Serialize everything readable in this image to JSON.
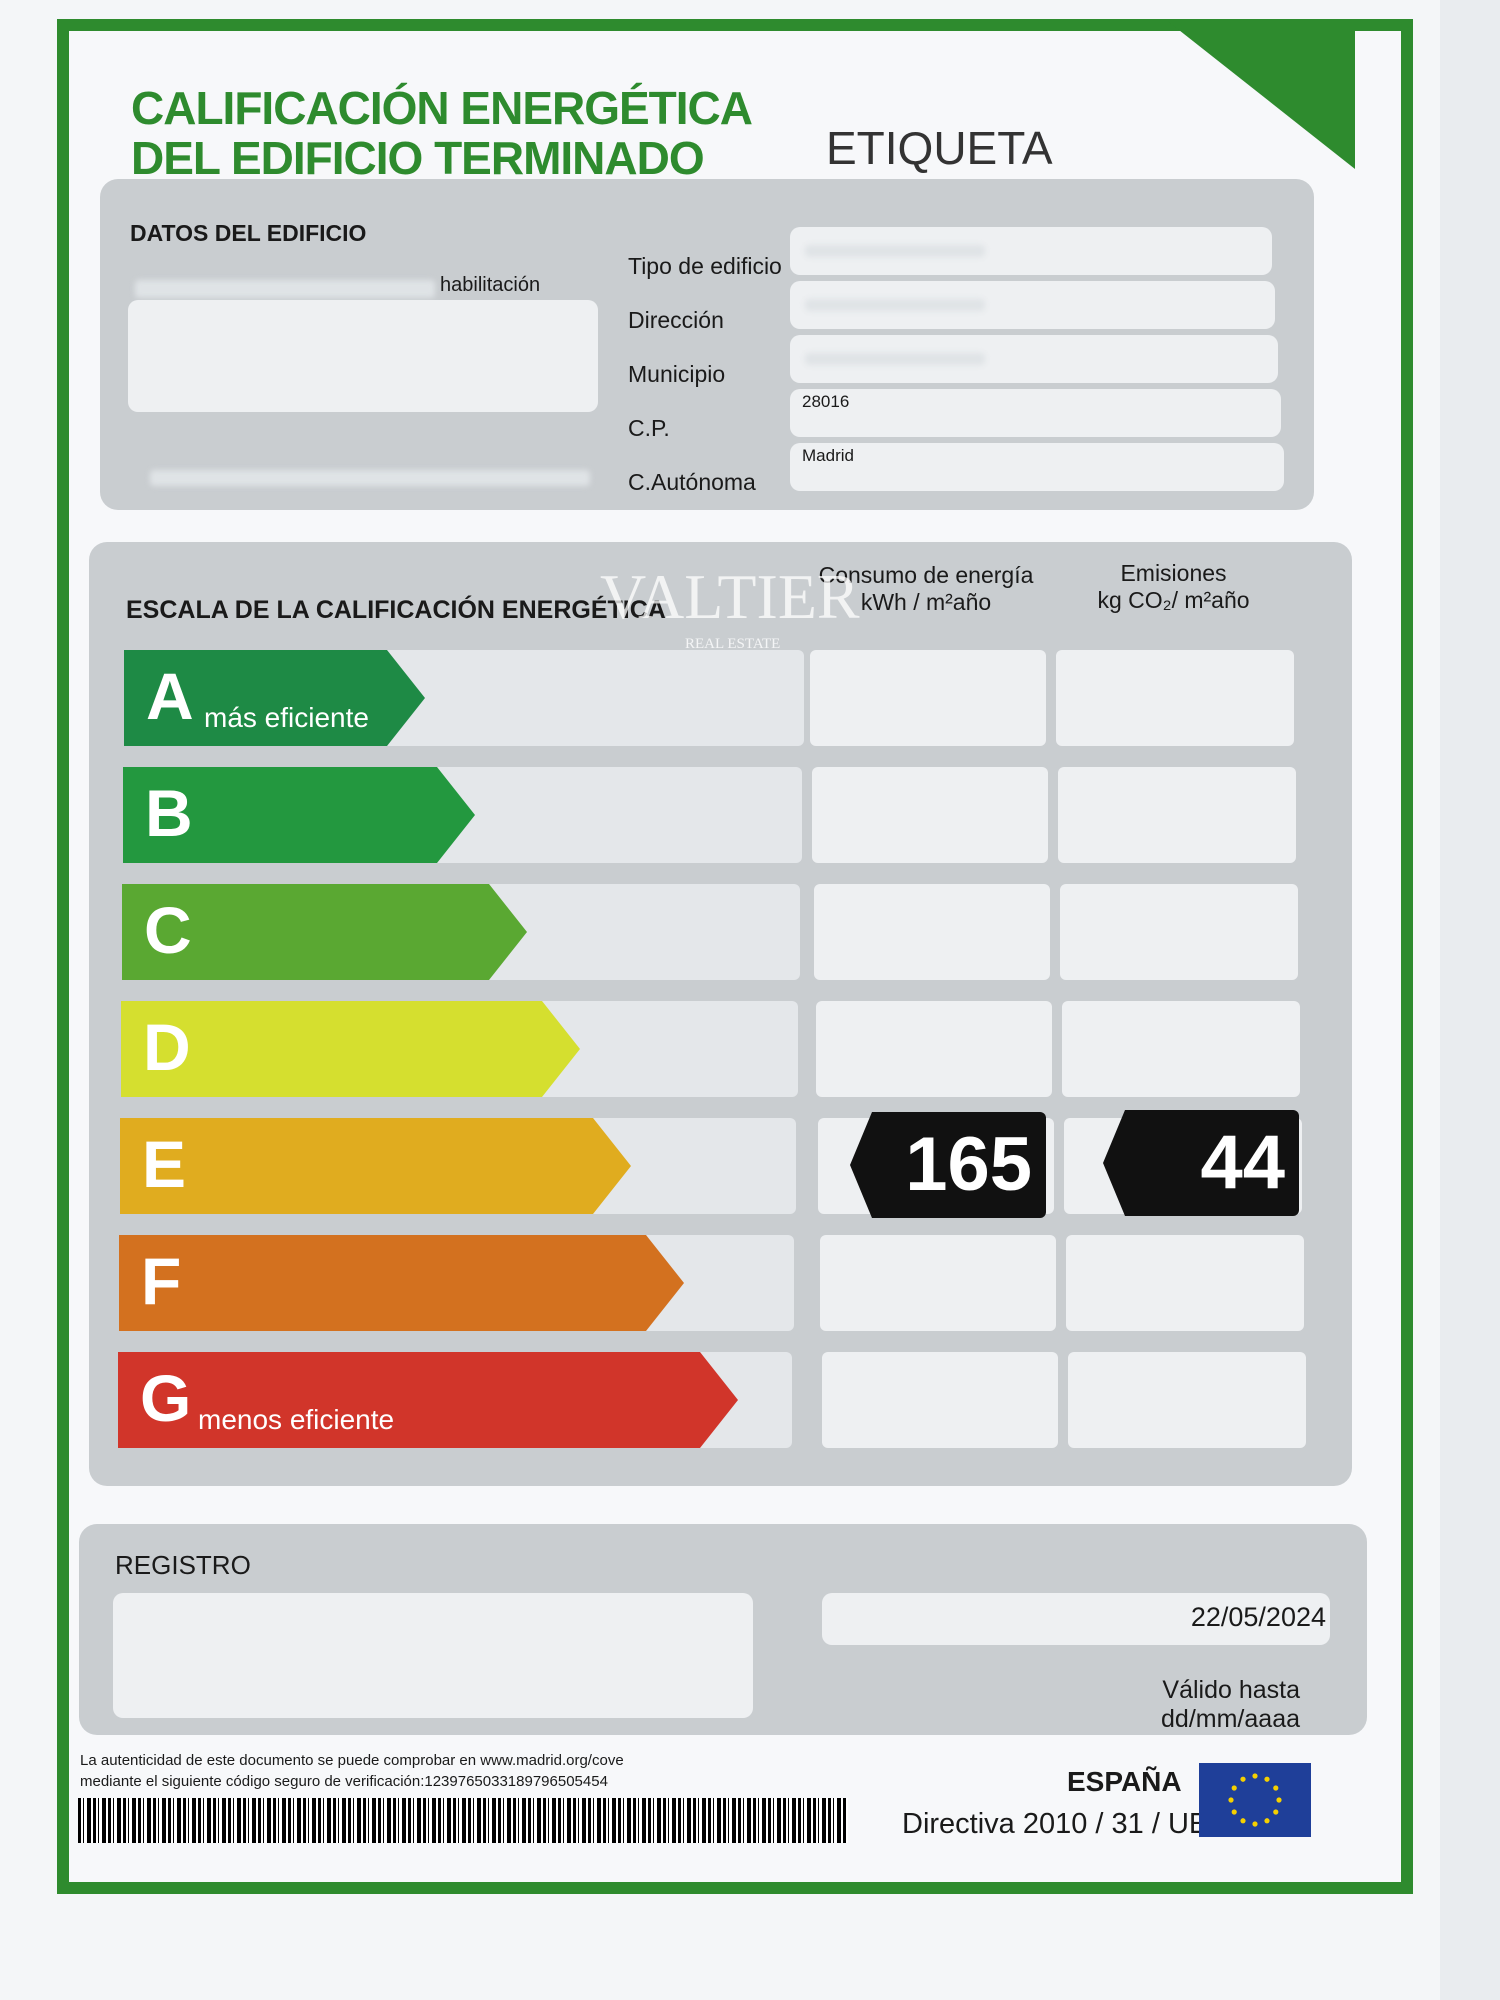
{
  "header": {
    "title_line1": "CALIFICACIÓN ENERGÉTICA",
    "title_line2": "DEL EDIFICIO TERMINADO",
    "label": "ETIQUETA"
  },
  "building": {
    "section_title": "DATOS DEL EDIFICIO",
    "partial_text": "habilitación",
    "fields": [
      {
        "label": "Tipo de edificio",
        "value": ""
      },
      {
        "label": "Dirección",
        "value": ""
      },
      {
        "label": "Municipio",
        "value": ""
      },
      {
        "label": "C.P.",
        "value": "28016"
      },
      {
        "label": "C.Autónoma",
        "value": "Madrid"
      }
    ]
  },
  "scale": {
    "title": "ESCALA DE LA CALIFICACIÓN ENERGÉTICA",
    "col1_line1": "Consumo de energía",
    "col1_line2": "kWh / m²año",
    "col2_line1": "Emisiones",
    "col2_line2": "kg CO₂/ m²año",
    "classes": [
      {
        "letter": "A",
        "subtitle": "más eficiente",
        "color": "#1e8a45"
      },
      {
        "letter": "B",
        "subtitle": "",
        "color": "#23983f"
      },
      {
        "letter": "C",
        "subtitle": "",
        "color": "#5aa832"
      },
      {
        "letter": "D",
        "subtitle": "",
        "color": "#d5df2f"
      },
      {
        "letter": "E",
        "subtitle": "",
        "color": "#e0ac1f"
      },
      {
        "letter": "F",
        "subtitle": "",
        "color": "#d3711f"
      },
      {
        "letter": "G",
        "subtitle": "menos eficiente",
        "color": "#d1352a"
      }
    ],
    "rating": "E",
    "consumption": "165",
    "emissions": "44"
  },
  "watermark": {
    "brand": "VALTIER",
    "sub": "REAL ESTATE"
  },
  "registro": {
    "title": "REGISTRO",
    "date": "22/05/2024",
    "valid_until": "Válido hasta dd/mm/aaaa"
  },
  "footer": {
    "line1": "La autenticidad de este documento se puede comprobar en www.madrid.org/cove",
    "line2": "mediante el siguiente código seguro de verificación:1239765033189796505454",
    "country": "ESPAÑA",
    "directive": "Directiva 2010 / 31 / UE"
  }
}
